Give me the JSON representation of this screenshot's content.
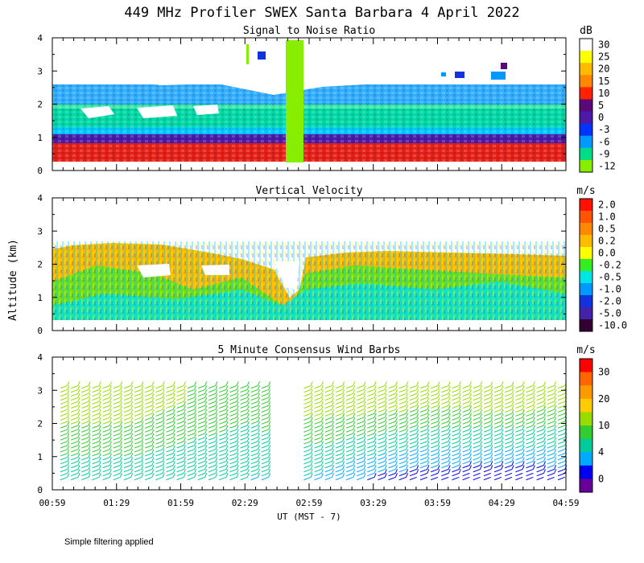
{
  "figure": {
    "title": "449 MHz Profiler SWEX Santa Barbara  4 April 2022",
    "ylabel": "Altitude (km)",
    "xlabel": "UT  (MST - 7)",
    "x_ticks": [
      "00:59",
      "01:29",
      "01:59",
      "02:29",
      "02:59",
      "03:29",
      "03:59",
      "04:29",
      "04:59"
    ],
    "y_ticks": [
      "0",
      "1",
      "2",
      "3",
      "4"
    ],
    "footnote": "Simple filtering applied"
  },
  "chart_data": [
    {
      "type": "heatmap",
      "title": "Signal to Noise Ratio",
      "unit": "dB",
      "xlim": [
        "00:59",
        "04:59"
      ],
      "ylim": [
        0,
        4
      ],
      "colorbar": {
        "labels": [
          "30",
          "25",
          "20",
          "15",
          "10",
          "5",
          "0",
          "-3",
          "-6",
          "-9",
          "-12"
        ],
        "colors": [
          "#ffffff",
          "#ffff00",
          "#ffbb00",
          "#ff8800",
          "#ff2200",
          "#5a0a78",
          "#4b1aa8",
          "#0033ff",
          "#0099ff",
          "#00dd88",
          "#88ee00"
        ]
      },
      "profile": [
        {
          "time": "00:59",
          "top_km": 2.6
        },
        {
          "time": "01:29",
          "top_km": 2.8
        },
        {
          "time": "01:59",
          "top_km": 2.5
        },
        {
          "time": "02:29",
          "top_km": 2.4
        },
        {
          "time": "02:59",
          "top_km": 2.2
        },
        {
          "time": "03:29",
          "top_km": 2.4
        },
        {
          "time": "03:59",
          "top_km": 2.5
        },
        {
          "time": "04:29",
          "top_km": 2.6
        },
        {
          "time": "04:59",
          "top_km": 2.7
        }
      ]
    },
    {
      "type": "heatmap",
      "title": "Vertical Velocity",
      "unit": "m/s",
      "xlim": [
        "00:59",
        "04:59"
      ],
      "ylim": [
        0,
        4
      ],
      "colorbar": {
        "labels": [
          "2.0",
          "1.0",
          "0.5",
          "0.2",
          "0.0",
          "-0.2",
          "-0.5",
          "-1.0",
          "-2.0",
          "-5.0",
          "-10.0"
        ],
        "colors": [
          "#ff1100",
          "#ff5500",
          "#ff8800",
          "#ffbb00",
          "#ffff00",
          "#33ee22",
          "#00e6e6",
          "#0099ff",
          "#1133dd",
          "#4422aa",
          "#330033"
        ]
      },
      "profile": [
        {
          "time": "00:59",
          "top_km": 2.5
        },
        {
          "time": "01:29",
          "top_km": 2.6
        },
        {
          "time": "01:59",
          "top_km": 2.5
        },
        {
          "time": "02:29",
          "top_km": 2.3
        },
        {
          "time": "02:59",
          "top_km": 0.9
        },
        {
          "time": "03:29",
          "top_km": 2.4
        },
        {
          "time": "03:59",
          "top_km": 2.3
        },
        {
          "time": "04:29",
          "top_km": 2.3
        },
        {
          "time": "04:59",
          "top_km": 2.3
        }
      ]
    },
    {
      "type": "scatter",
      "title": "5 Minute Consensus Wind Barbs",
      "unit": "m/s",
      "xlim": [
        "00:59",
        "04:59"
      ],
      "ylim": [
        0,
        4
      ],
      "colorbar": {
        "labels": [
          "30",
          "20",
          "10",
          "4",
          "0"
        ],
        "colors": [
          "#ff0000",
          "#ff6600",
          "#ff9900",
          "#ffcc00",
          "#99dd00",
          "#33cc33",
          "#00cc99",
          "#00aaff",
          "#0000ee",
          "#660099"
        ]
      },
      "wind_speed_profile": [
        {
          "time": "00:59",
          "speed_low": 10,
          "speed_high": 18
        },
        {
          "time": "01:29",
          "speed_low": 10,
          "speed_high": 18
        },
        {
          "time": "01:59",
          "speed_low": 9,
          "speed_high": 16
        },
        {
          "time": "02:29",
          "speed_low": 9,
          "speed_high": 14
        },
        {
          "time": "02:59",
          "speed_low": 8,
          "speed_high": 18
        },
        {
          "time": "03:29",
          "speed_low": 4,
          "speed_high": 18
        },
        {
          "time": "03:59",
          "speed_low": 3,
          "speed_high": 17
        },
        {
          "time": "04:29",
          "speed_low": 2,
          "speed_high": 18
        },
        {
          "time": "04:59",
          "speed_low": 3,
          "speed_high": 17
        }
      ]
    }
  ]
}
